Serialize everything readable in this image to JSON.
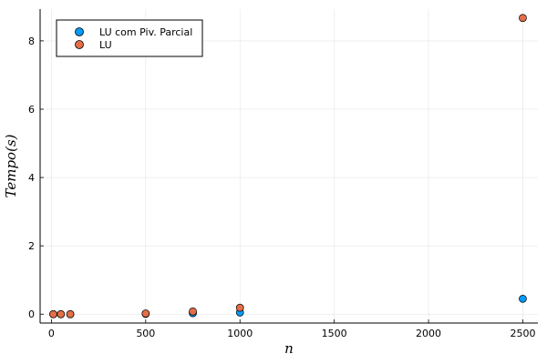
{
  "chart_data": {
    "type": "scatter",
    "title": "",
    "xlabel": "n",
    "ylabel": "Tempo(s)",
    "xlim": [
      -60,
      2580
    ],
    "ylim": [
      -0.26,
      8.93
    ],
    "x_ticks": [
      0,
      500,
      1000,
      1500,
      2000,
      2500
    ],
    "y_ticks": [
      0,
      2,
      4,
      6,
      8
    ],
    "x_tick_labels": [
      "0",
      "500",
      "1000",
      "1500",
      "2000",
      "2500"
    ],
    "y_tick_labels": [
      "0",
      "2",
      "4",
      "6",
      "8"
    ],
    "grid": true,
    "legend_position": "top-left",
    "series": [
      {
        "name": "LU com Piv. Parcial",
        "color": "#009AFA",
        "points": [
          {
            "x": 10,
            "y": 0.0
          },
          {
            "x": 50,
            "y": 0.0
          },
          {
            "x": 100,
            "y": 0.0
          },
          {
            "x": 500,
            "y": 0.01
          },
          {
            "x": 750,
            "y": 0.03
          },
          {
            "x": 1000,
            "y": 0.05
          },
          {
            "x": 2500,
            "y": 0.45
          }
        ]
      },
      {
        "name": "LU",
        "color": "#E36F47",
        "points": [
          {
            "x": 10,
            "y": 0.0
          },
          {
            "x": 50,
            "y": 0.0
          },
          {
            "x": 100,
            "y": 0.0
          },
          {
            "x": 500,
            "y": 0.02
          },
          {
            "x": 750,
            "y": 0.08
          },
          {
            "x": 1000,
            "y": 0.19
          },
          {
            "x": 2500,
            "y": 8.67
          }
        ]
      }
    ]
  }
}
